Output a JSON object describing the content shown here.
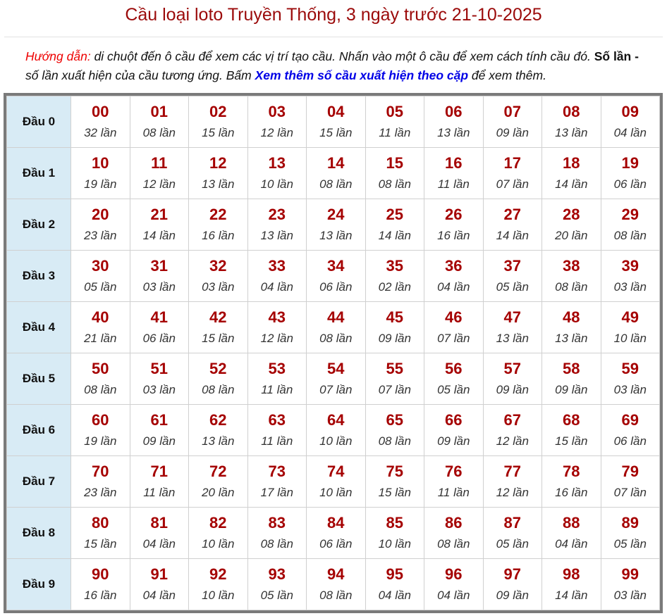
{
  "title": "Cầu loại loto Truyền Thống, 3 ngày trước 21-10-2025",
  "guide": {
    "label": "Hướng dẫn:",
    "text1": " di chuột đến ô cầu để xem các vị trí tạo cầu. Nhấn vào một ô cầu để xem cách tính cầu đó. ",
    "bold": "Số lần -",
    "text2": " số lần xuất hiện của cầu tương ứng. Bấm ",
    "link": "Xem thêm số cầu xuất hiện theo cặp",
    "text3": " để xem thêm."
  },
  "colors": {
    "number": "#a50000",
    "header_bg": "#d8ebf5",
    "title": "#9b0a0a",
    "link": "#0000e6"
  },
  "suffix": "lần",
  "rows": [
    {
      "label": "Đầu 0",
      "counts": [
        "32",
        "08",
        "15",
        "12",
        "15",
        "11",
        "13",
        "09",
        "13",
        "04"
      ]
    },
    {
      "label": "Đầu 1",
      "counts": [
        "19",
        "12",
        "13",
        "10",
        "08",
        "08",
        "11",
        "07",
        "14",
        "06"
      ]
    },
    {
      "label": "Đầu 2",
      "counts": [
        "23",
        "14",
        "16",
        "13",
        "13",
        "14",
        "16",
        "14",
        "20",
        "08"
      ]
    },
    {
      "label": "Đầu 3",
      "counts": [
        "05",
        "03",
        "03",
        "04",
        "06",
        "02",
        "04",
        "05",
        "08",
        "03"
      ]
    },
    {
      "label": "Đầu 4",
      "counts": [
        "21",
        "06",
        "15",
        "12",
        "08",
        "09",
        "07",
        "13",
        "13",
        "10"
      ]
    },
    {
      "label": "Đầu 5",
      "counts": [
        "08",
        "03",
        "08",
        "11",
        "07",
        "07",
        "05",
        "09",
        "09",
        "03"
      ]
    },
    {
      "label": "Đầu 6",
      "counts": [
        "19",
        "09",
        "13",
        "11",
        "10",
        "08",
        "09",
        "12",
        "15",
        "06"
      ]
    },
    {
      "label": "Đầu 7",
      "counts": [
        "23",
        "11",
        "20",
        "17",
        "10",
        "15",
        "11",
        "12",
        "16",
        "07"
      ]
    },
    {
      "label": "Đầu 8",
      "counts": [
        "15",
        "04",
        "10",
        "08",
        "06",
        "10",
        "08",
        "05",
        "04",
        "05"
      ]
    },
    {
      "label": "Đầu 9",
      "counts": [
        "16",
        "04",
        "10",
        "05",
        "08",
        "04",
        "04",
        "09",
        "14",
        "03"
      ]
    }
  ]
}
